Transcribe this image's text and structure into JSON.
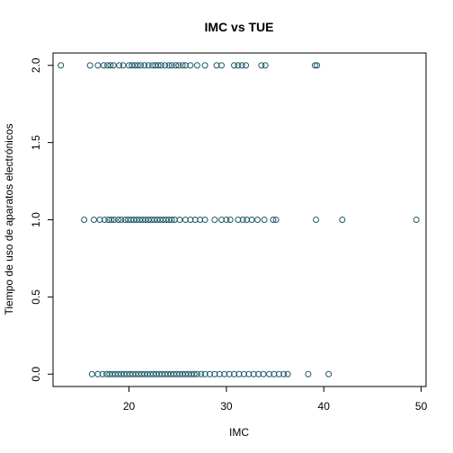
{
  "chart_data": {
    "type": "scatter",
    "title": "IMC vs TUE",
    "xlabel": "IMC",
    "ylabel": "Tiempo de uso de aparatos electrónicos",
    "xlim": [
      12.2,
      50.5
    ],
    "ylim": [
      -0.08,
      2.08
    ],
    "xticks": [
      20,
      30,
      40,
      50
    ],
    "xtick_labels": [
      "20",
      "30",
      "40",
      "50"
    ],
    "yticks": [
      0,
      0.5,
      1,
      1.5,
      2
    ],
    "ytick_labels": [
      "0.0",
      "0.5",
      "1.0",
      "1.5",
      "2.0"
    ],
    "grid": false,
    "marker": "open-circle",
    "color": "#1f5a68",
    "series": [
      {
        "points": [
          [
            13.0,
            2
          ],
          [
            16.0,
            2
          ],
          [
            16.8,
            2
          ],
          [
            17.4,
            2
          ],
          [
            17.8,
            2
          ],
          [
            18.1,
            2
          ],
          [
            18.4,
            2
          ],
          [
            19.0,
            2
          ],
          [
            19.4,
            2
          ],
          [
            20.0,
            2
          ],
          [
            20.3,
            2
          ],
          [
            20.6,
            2
          ],
          [
            20.9,
            2
          ],
          [
            21.2,
            2
          ],
          [
            21.6,
            2
          ],
          [
            22.0,
            2
          ],
          [
            22.4,
            2
          ],
          [
            22.7,
            2
          ],
          [
            23.0,
            2
          ],
          [
            23.3,
            2
          ],
          [
            23.7,
            2
          ],
          [
            24.1,
            2
          ],
          [
            24.4,
            2
          ],
          [
            24.8,
            2
          ],
          [
            25.1,
            2
          ],
          [
            25.5,
            2
          ],
          [
            25.8,
            2
          ],
          [
            26.3,
            2
          ],
          [
            27.0,
            2
          ],
          [
            27.8,
            2
          ],
          [
            29.0,
            2
          ],
          [
            29.5,
            2
          ],
          [
            30.8,
            2
          ],
          [
            31.2,
            2
          ],
          [
            31.6,
            2
          ],
          [
            32.0,
            2
          ],
          [
            33.6,
            2
          ],
          [
            34.0,
            2
          ],
          [
            39.1,
            2
          ],
          [
            39.3,
            2
          ],
          [
            15.4,
            1
          ],
          [
            16.4,
            1
          ],
          [
            17.0,
            1
          ],
          [
            17.5,
            1
          ],
          [
            17.9,
            1
          ],
          [
            18.2,
            1
          ],
          [
            18.5,
            1
          ],
          [
            18.9,
            1
          ],
          [
            19.2,
            1
          ],
          [
            19.6,
            1
          ],
          [
            19.9,
            1
          ],
          [
            20.2,
            1
          ],
          [
            20.5,
            1
          ],
          [
            20.8,
            1
          ],
          [
            21.1,
            1
          ],
          [
            21.4,
            1
          ],
          [
            21.7,
            1
          ],
          [
            22.0,
            1
          ],
          [
            22.3,
            1
          ],
          [
            22.6,
            1
          ],
          [
            22.9,
            1
          ],
          [
            23.2,
            1
          ],
          [
            23.5,
            1
          ],
          [
            23.8,
            1
          ],
          [
            24.1,
            1
          ],
          [
            24.4,
            1
          ],
          [
            24.7,
            1
          ],
          [
            25.2,
            1
          ],
          [
            25.8,
            1
          ],
          [
            26.3,
            1
          ],
          [
            26.8,
            1
          ],
          [
            27.3,
            1
          ],
          [
            27.8,
            1
          ],
          [
            28.8,
            1
          ],
          [
            29.5,
            1
          ],
          [
            30.0,
            1
          ],
          [
            30.4,
            1
          ],
          [
            31.2,
            1
          ],
          [
            31.7,
            1
          ],
          [
            32.1,
            1
          ],
          [
            32.6,
            1
          ],
          [
            33.2,
            1
          ],
          [
            33.9,
            1
          ],
          [
            34.8,
            1
          ],
          [
            35.1,
            1
          ],
          [
            39.2,
            1
          ],
          [
            41.9,
            1
          ],
          [
            49.5,
            1
          ],
          [
            16.2,
            0
          ],
          [
            16.8,
            0
          ],
          [
            17.3,
            0
          ],
          [
            17.7,
            0
          ],
          [
            18.0,
            0
          ],
          [
            18.3,
            0
          ],
          [
            18.6,
            0
          ],
          [
            18.9,
            0
          ],
          [
            19.2,
            0
          ],
          [
            19.5,
            0
          ],
          [
            19.8,
            0
          ],
          [
            20.1,
            0
          ],
          [
            20.4,
            0
          ],
          [
            20.7,
            0
          ],
          [
            21.0,
            0
          ],
          [
            21.3,
            0
          ],
          [
            21.6,
            0
          ],
          [
            21.9,
            0
          ],
          [
            22.2,
            0
          ],
          [
            22.5,
            0
          ],
          [
            22.8,
            0
          ],
          [
            23.1,
            0
          ],
          [
            23.4,
            0
          ],
          [
            23.7,
            0
          ],
          [
            24.0,
            0
          ],
          [
            24.3,
            0
          ],
          [
            24.6,
            0
          ],
          [
            24.9,
            0
          ],
          [
            25.2,
            0
          ],
          [
            25.5,
            0
          ],
          [
            25.8,
            0
          ],
          [
            26.1,
            0
          ],
          [
            26.4,
            0
          ],
          [
            26.7,
            0
          ],
          [
            27.0,
            0
          ],
          [
            27.4,
            0
          ],
          [
            27.8,
            0
          ],
          [
            28.3,
            0
          ],
          [
            28.8,
            0
          ],
          [
            29.3,
            0
          ],
          [
            29.8,
            0
          ],
          [
            30.3,
            0
          ],
          [
            30.8,
            0
          ],
          [
            31.3,
            0
          ],
          [
            31.8,
            0
          ],
          [
            32.3,
            0
          ],
          [
            32.8,
            0
          ],
          [
            33.3,
            0
          ],
          [
            33.8,
            0
          ],
          [
            34.4,
            0
          ],
          [
            34.9,
            0
          ],
          [
            35.4,
            0
          ],
          [
            35.9,
            0
          ],
          [
            36.3,
            0
          ],
          [
            38.4,
            0
          ],
          [
            40.5,
            0
          ]
        ]
      }
    ]
  }
}
